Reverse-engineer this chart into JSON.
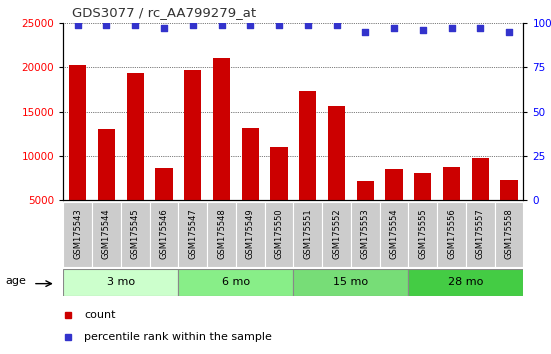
{
  "title": "GDS3077 / rc_AA799279_at",
  "samples": [
    "GSM175543",
    "GSM175544",
    "GSM175545",
    "GSM175546",
    "GSM175547",
    "GSM175548",
    "GSM175549",
    "GSM175550",
    "GSM175551",
    "GSM175552",
    "GSM175553",
    "GSM175554",
    "GSM175555",
    "GSM175556",
    "GSM175557",
    "GSM175558"
  ],
  "bar_values": [
    20200,
    13000,
    19400,
    8600,
    19700,
    21100,
    13100,
    11000,
    17300,
    15600,
    7200,
    8500,
    8100,
    8700,
    9800,
    7300
  ],
  "percentile_values": [
    99,
    99,
    99,
    97,
    99,
    99,
    99,
    99,
    99,
    99,
    95,
    97,
    96,
    97,
    97,
    95
  ],
  "bar_color": "#cc0000",
  "percentile_color": "#3333cc",
  "ylim_left": [
    5000,
    25000
  ],
  "ylim_right": [
    0,
    100
  ],
  "yticks_left": [
    5000,
    10000,
    15000,
    20000,
    25000
  ],
  "yticks_right": [
    0,
    25,
    50,
    75,
    100
  ],
  "groups": [
    {
      "label": "3 mo",
      "start": 0,
      "end": 4,
      "color": "#ccffcc"
    },
    {
      "label": "6 mo",
      "start": 4,
      "end": 8,
      "color": "#88ee88"
    },
    {
      "label": "15 mo",
      "start": 8,
      "end": 12,
      "color": "#77dd77"
    },
    {
      "label": "28 mo",
      "start": 12,
      "end": 16,
      "color": "#44cc44"
    }
  ],
  "age_label": "age",
  "legend_count_label": "count",
  "legend_percentile_label": "percentile rank within the sample",
  "tick_box_color": "#cccccc",
  "plot_bg_color": "#ffffff",
  "grid_color": "#000000",
  "title_color": "#333333"
}
